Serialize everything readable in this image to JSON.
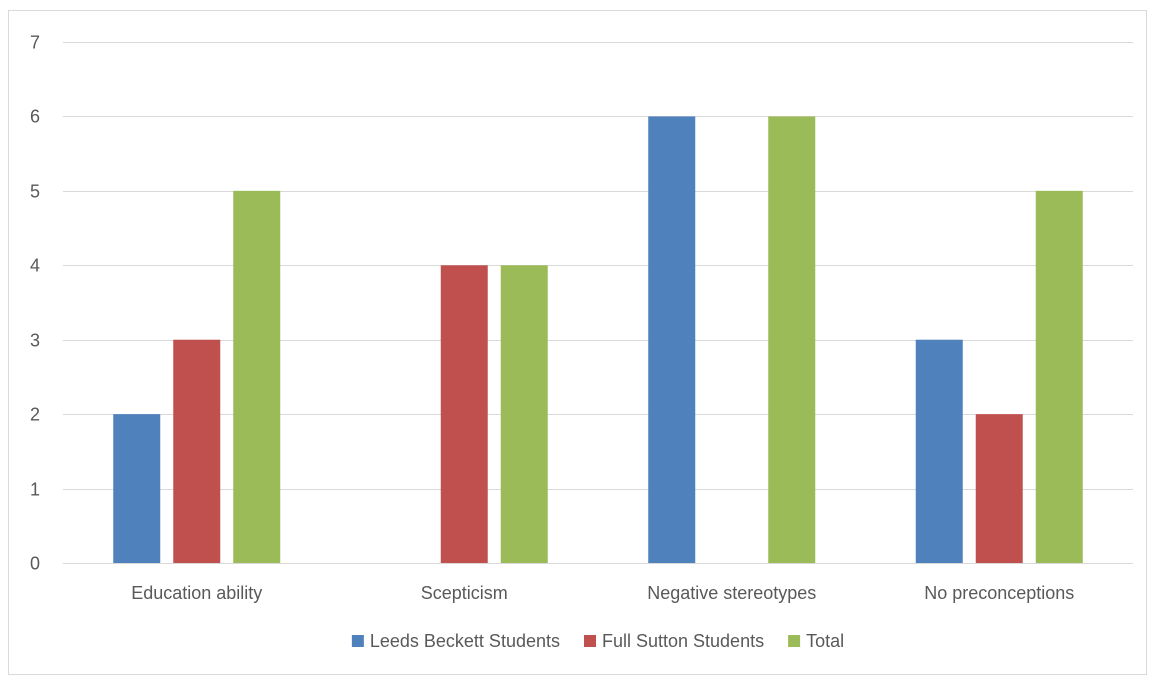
{
  "chart_data": {
    "type": "bar",
    "title": "",
    "xlabel": "",
    "ylabel": "",
    "categories": [
      "Education ability",
      "Scepticism",
      "Negative stereotypes",
      "No preconceptions"
    ],
    "series": [
      {
        "name": "Leeds Beckett Students",
        "values": [
          2,
          0,
          6,
          3
        ],
        "color": "#4f81bd"
      },
      {
        "name": "Full Sutton Students",
        "values": [
          3,
          4,
          0,
          2
        ],
        "color": "#c0504d"
      },
      {
        "name": "Total",
        "values": [
          5,
          4,
          6,
          5
        ],
        "color": "#9bbb59"
      }
    ],
    "ylim": [
      0,
      7
    ],
    "yticks": [
      0,
      1,
      2,
      3,
      4,
      5,
      6,
      7
    ],
    "grid": true,
    "legend_position": "bottom"
  }
}
